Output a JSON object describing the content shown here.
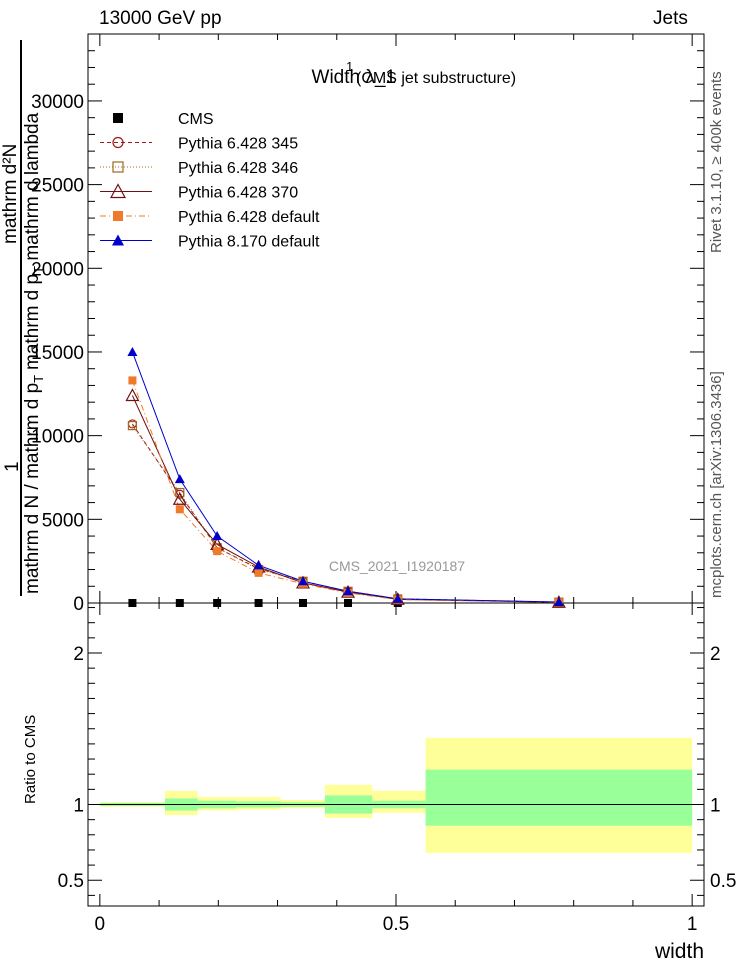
{
  "header": {
    "left": "13000 GeV pp",
    "right": "Jets"
  },
  "side_labels": {
    "rivet": "Rivet 3.1.10, ≥ 400k events",
    "mcplots": "mcplots.cern.ch [arXiv:1306.3436]"
  },
  "ratio_ylabel": "Ratio to CMS",
  "ylabel": {
    "numerator_1": "mathrm d²N",
    "numerator_2": "mathrm d p",
    "numerator_2_sub": "T",
    "numerator_2_tail": " mathrm d lambda",
    "fraction_1": "1",
    "denominator": "mathrm d N / mathrm d p",
    "denominator_sub": "T"
  },
  "chart_data": {
    "type": "line",
    "title": "Width λ_1",
    "title_sup": "1",
    "title_suffix": "(CMS jet substructure)",
    "watermark": "CMS_2021_I1920187",
    "xlabel": "width",
    "xlim": [
      -0.02,
      1.02
    ],
    "ylim": [
      0,
      34000
    ],
    "ratio_ylim": [
      0.33,
      2.33
    ],
    "x_ticks": [
      "0",
      "0.5",
      "1"
    ],
    "y_ticks": [
      "0",
      "5000",
      "10000",
      "15000",
      "20000",
      "25000",
      "30000"
    ],
    "ratio_ticks": [
      "0.5",
      "1",
      "2"
    ],
    "x": [
      0.055,
      0.135,
      0.198,
      0.268,
      0.343,
      0.419,
      0.503,
      0.775
    ],
    "series": [
      {
        "name": "CMS",
        "color": "#000000",
        "marker": "filled-square",
        "line": "none",
        "values": [
          0,
          0,
          0,
          0,
          0,
          0,
          0,
          0
        ]
      },
      {
        "name": "Pythia 6.428 345",
        "color": "#a01818",
        "marker": "open-circle",
        "line": "dashed",
        "values": [
          10700,
          6500,
          3300,
          2050,
          1300,
          700,
          250,
          50
        ]
      },
      {
        "name": "Pythia 6.428 346",
        "color": "#a06820",
        "marker": "open-square",
        "line": "dotted",
        "values": [
          10600,
          6600,
          3300,
          2000,
          1300,
          700,
          240,
          50
        ]
      },
      {
        "name": "Pythia 6.428 370",
        "color": "#701010",
        "marker": "open-triangle",
        "line": "solid",
        "values": [
          12400,
          6200,
          3500,
          2150,
          1200,
          650,
          220,
          40
        ]
      },
      {
        "name": "Pythia 6.428 default",
        "color": "#ef7a2a",
        "marker": "filled-square",
        "line": "dashdot",
        "values": [
          13300,
          5600,
          3100,
          1800,
          1150,
          600,
          200,
          40
        ]
      },
      {
        "name": "Pythia 8.170 default",
        "color": "#0000cc",
        "marker": "filled-triangle",
        "line": "solid",
        "values": [
          15000,
          7400,
          4000,
          2250,
          1300,
          700,
          250,
          60
        ]
      }
    ],
    "ratio_bands": {
      "x_edges": [
        0.0,
        0.11,
        0.165,
        0.23,
        0.305,
        0.38,
        0.46,
        0.55,
        1.0
      ],
      "green_low": [
        0.99,
        0.96,
        0.975,
        0.98,
        0.985,
        0.94,
        0.975,
        0.86
      ],
      "green_high": [
        1.01,
        1.04,
        1.025,
        1.02,
        1.015,
        1.06,
        1.025,
        1.23
      ],
      "yellow_low": [
        0.985,
        0.93,
        0.96,
        0.965,
        0.975,
        0.91,
        0.945,
        0.68
      ],
      "yellow_high": [
        1.015,
        1.09,
        1.05,
        1.05,
        1.03,
        1.13,
        1.09,
        1.44
      ],
      "green_color": "#99ff99",
      "yellow_color": "#ffff99"
    }
  }
}
